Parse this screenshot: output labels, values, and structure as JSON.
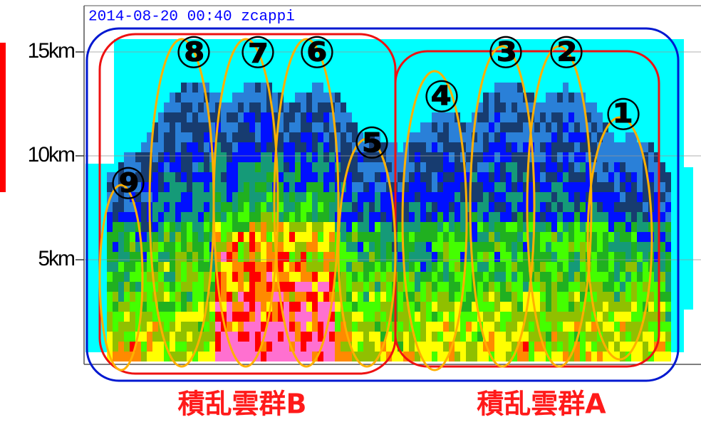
{
  "title": "2014-08-20 00:40 zcappi",
  "y_axis": {
    "labels": [
      "15km",
      "10km",
      "5km"
    ]
  },
  "cells": [
    "①",
    "②",
    "③",
    "④",
    "⑤",
    "⑥",
    "⑦",
    "⑧",
    "⑨"
  ],
  "groups": [
    "積乱雲群B",
    "積乱雲群A"
  ]
}
